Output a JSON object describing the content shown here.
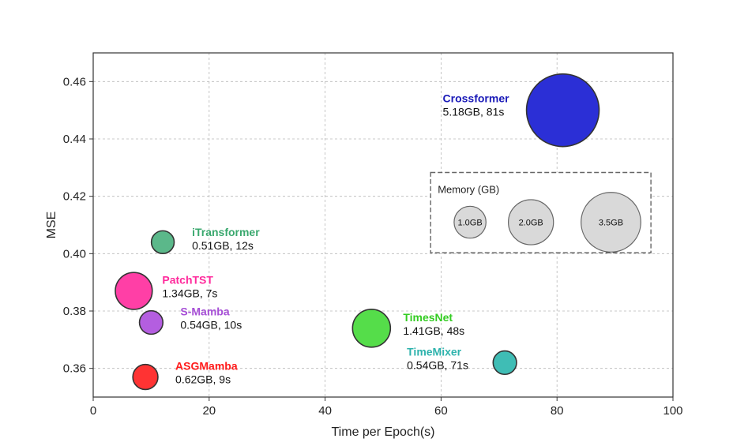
{
  "chart_data": {
    "type": "scatter",
    "xlabel": "Time per Epoch(s)",
    "ylabel": "MSE",
    "xlim": [
      0,
      100
    ],
    "ylim": [
      0.35,
      0.47
    ],
    "xticks": [
      0,
      20,
      40,
      60,
      80,
      100
    ],
    "yticks": [
      0.36,
      0.38,
      0.4,
      0.42,
      0.44,
      0.46
    ],
    "xtick_labels": [
      "0",
      "20",
      "40",
      "60",
      "80",
      "100"
    ],
    "ytick_labels": [
      "0.36",
      "0.38",
      "0.40",
      "0.42",
      "0.44",
      "0.46"
    ],
    "grid": true,
    "points": [
      {
        "name": "Crossformer",
        "info": "5.18GB, 81s",
        "x": 81,
        "y": 0.45,
        "memory_gb": 5.18,
        "color": "#2b2fd6",
        "label_color": "#1a1ab8"
      },
      {
        "name": "iTransformer",
        "info": "0.51GB, 12s",
        "x": 12,
        "y": 0.404,
        "memory_gb": 0.51,
        "color": "#5bb88a",
        "label_color": "#3aa86e"
      },
      {
        "name": "PatchTST",
        "info": "1.34GB, 7s",
        "x": 7,
        "y": 0.387,
        "memory_gb": 1.34,
        "color": "#ff3fa6",
        "label_color": "#ff2a9c"
      },
      {
        "name": "S-Mamba",
        "info": "0.54GB, 10s",
        "x": 10,
        "y": 0.376,
        "memory_gb": 0.54,
        "color": "#b45ee0",
        "label_color": "#a64fd6"
      },
      {
        "name": "TimesNet",
        "info": "1.41GB, 48s",
        "x": 48,
        "y": 0.374,
        "memory_gb": 1.41,
        "color": "#55dd4a",
        "label_color": "#33cc22"
      },
      {
        "name": "TimeMixer",
        "info": "0.54GB, 71s",
        "x": 71,
        "y": 0.362,
        "memory_gb": 0.54,
        "color": "#3fbdb5",
        "label_color": "#2eb3ad"
      },
      {
        "name": "ASGMamba",
        "info": "0.62GB, 9s",
        "x": 9,
        "y": 0.357,
        "memory_gb": 0.62,
        "color": "#ff3333",
        "label_color": "#ff1a1a"
      }
    ],
    "legend": {
      "title": "Memory (GB)",
      "placement": "right",
      "entries": [
        {
          "label": "1.0GB",
          "memory_gb": 1.0
        },
        {
          "label": "2.0GB",
          "memory_gb": 2.0
        },
        {
          "label": "3.5GB",
          "memory_gb": 3.5
        }
      ]
    }
  }
}
